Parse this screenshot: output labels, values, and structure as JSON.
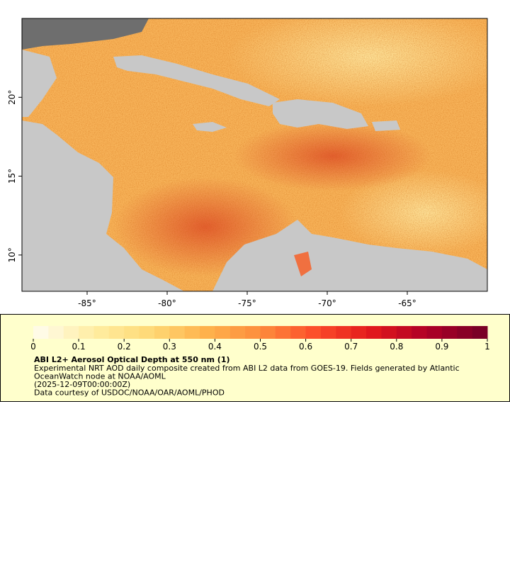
{
  "map": {
    "lonlim": [
      -89.07,
      -60.0
    ],
    "latlim": [
      7.7,
      25.0
    ],
    "xticks": [
      {
        "value": -85,
        "label": "-85°"
      },
      {
        "value": -80,
        "label": "-80°"
      },
      {
        "value": -75,
        "label": "-75°"
      },
      {
        "value": -70,
        "label": "-70°"
      },
      {
        "value": -65,
        "label": "-65°"
      }
    ],
    "yticks": [
      {
        "value": 10,
        "label": "10°"
      },
      {
        "value": 15,
        "label": "15°"
      },
      {
        "value": 20,
        "label": "20°"
      }
    ]
  },
  "colorbar": {
    "lim": [
      0,
      1
    ],
    "ticks": [
      0,
      0.1,
      0.2,
      0.3,
      0.4,
      0.5,
      0.6,
      0.7,
      0.8,
      0.9,
      1
    ],
    "levels": 30,
    "colors": [
      "#fffbe6",
      "#ffeda0",
      "#fed976",
      "#feb24c",
      "#fd8d3c",
      "#fc4e2a",
      "#e31a1c",
      "#b10026",
      "#7a0026"
    ],
    "title": "ABI L2+ Aerosol Optical Depth at 550 nm (1)",
    "description": [
      "Experimental NRT AOD daily composite created from ABI L2 data from GOES-19. Fields generated by Atlantic",
      "OceanWatch node at NOAA/AOML",
      "(2025-12-09T00:00:00Z)",
      "Data courtesy of USDOC/NOAA/OAR/AOML/PHOD"
    ]
  }
}
